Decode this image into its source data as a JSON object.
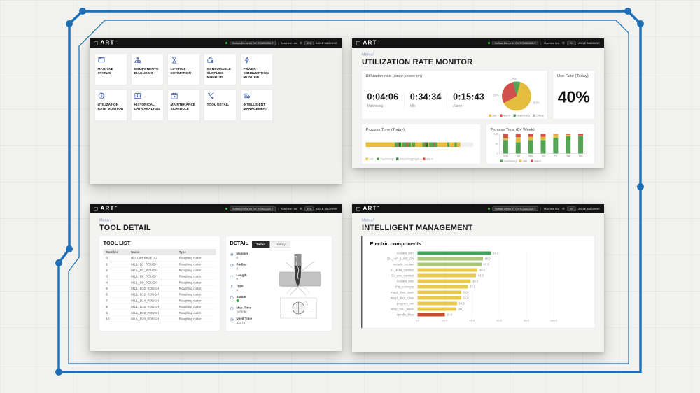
{
  "canvas": {
    "background": "#f1f1ef",
    "frame_color": "#1d6fb8"
  },
  "appbar": {
    "brand": "ART",
    "tm": "™",
    "status_color": "#3ec146",
    "machine_name": "Buffalo Demo #1 GX ROM50350-T",
    "separator": "|",
    "machine_list_label": "Machine List",
    "gear_icon": "⚙",
    "lang_label": "EN",
    "machine_type_label": "AXILE MACHINE"
  },
  "menu": {
    "tiles": [
      {
        "label": "MACHINE STATUS",
        "icon": "machine-status-icon"
      },
      {
        "label": "COMPONENTS DIAGNOSIS",
        "icon": "components-diagnosis-icon"
      },
      {
        "label": "LIFETIME ESTIMATION",
        "icon": "lifetime-estimation-icon"
      },
      {
        "label": "CONSUMABLE SUPPLIES MONITOR",
        "icon": "consumable-supplies-icon"
      },
      {
        "label": "POWER CONSUMPTION MONITOR",
        "icon": "power-consumption-icon"
      },
      {
        "label": "UTILIZATION RATE MONITOR",
        "icon": "utilization-rate-icon"
      },
      {
        "label": "HISTORICAL DATA ANALYSIS",
        "icon": "historical-data-icon"
      },
      {
        "label": "MAINTENANCE SCHEDULE",
        "icon": "maintenance-schedule-icon"
      },
      {
        "label": "TOOL DETAIL",
        "icon": "tool-detail-icon"
      },
      {
        "label": "INTELLIGENT MANAGEMENT",
        "icon": "intelligent-management-icon"
      }
    ]
  },
  "utilization": {
    "breadcrumb": "Menu /",
    "title": "UTILIZATION RATE MONITOR",
    "rate_card_title": "Utilization rate (since power on)",
    "stats": [
      {
        "value": "0:04:06",
        "label": "Machining"
      },
      {
        "value": "0:34:34",
        "label": "Idle"
      },
      {
        "value": "0:15:43",
        "label": "Alarm"
      }
    ],
    "use_rate_title": "Use Rate (Today)",
    "use_rate_value": "40%",
    "today_title": "Process Time (Today)",
    "week_title": "Process Time (By Week)"
  },
  "tool": {
    "breadcrumb": "Menu /",
    "title": "TOOL DETAIL",
    "list_title": "TOOL LIST",
    "table": {
      "headers": [
        "Number",
        "Name",
        "Type"
      ],
      "rows": [
        [
          "0",
          "NULLWERKZEUG",
          "Roughing cutter"
        ],
        [
          "1",
          "MILL_D2_ROUGH",
          "Roughing cutter"
        ],
        [
          "2",
          "MILL_D4_ROUGH",
          "Roughing cutter"
        ],
        [
          "3",
          "MILL_D6_ROUGH",
          "Roughing cutter"
        ],
        [
          "4",
          "MILL_D8_ROUGH",
          "Roughing cutter"
        ],
        [
          "5",
          "MILL_D10_ROUGH",
          "Roughing cutter"
        ],
        [
          "6",
          "MILL_D12_ROUGH",
          "Roughing cutter"
        ],
        [
          "7",
          "MILL_D14_ROUGH",
          "Roughing cutter"
        ],
        [
          "8",
          "MILL_D16_ROUGH",
          "Roughing cutter"
        ],
        [
          "9",
          "MILL_D18_ROUGH",
          "Roughing cutter"
        ],
        [
          "10",
          "MILL_D20_ROUGH",
          "Roughing cutter"
        ]
      ]
    },
    "detail_title": "DETAIL",
    "tabs": [
      {
        "label": "Detail",
        "active": true
      },
      {
        "label": "History",
        "active": false
      }
    ],
    "fields": [
      {
        "icon": "number-icon",
        "label": "Number",
        "value": "0"
      },
      {
        "icon": "radius-icon",
        "label": "Radius",
        "value": "0"
      },
      {
        "icon": "length-icon",
        "label": "Length",
        "value": "0"
      },
      {
        "icon": "type-icon",
        "label": "Type",
        "value": "9"
      },
      {
        "icon": "status-icon",
        "label": "Status",
        "value": "",
        "status_color": "#2fae43"
      },
      {
        "icon": "max-time-icon",
        "label": "Max. Time",
        "value": "2400 hr"
      },
      {
        "icon": "used-time-icon",
        "label": "Used Time",
        "value": "333 hr"
      }
    ]
  },
  "intelligent": {
    "breadcrumb": "Menu /",
    "title": "INTELLIGENT MANAGEMENT",
    "chart_title": "Electric components"
  },
  "chart_data": [
    {
      "id": "utilization_pie",
      "type": "pie",
      "title": "Utilization rate (since power on)",
      "slices": [
        {
          "label": "machining",
          "value": 8,
          "pct_label": "8%",
          "color": "#55a455"
        },
        {
          "label": "idle",
          "value": 63,
          "pct_label": "63%",
          "color": "#e4bc3e"
        },
        {
          "label": "alarm",
          "value": 29,
          "pct_label": "29%",
          "color": "#d1504b"
        }
      ],
      "legend": [
        {
          "label": "idle",
          "color": "#e4bc3e"
        },
        {
          "label": "alarm",
          "color": "#d1504b"
        },
        {
          "label": "machining",
          "color": "#55a455"
        },
        {
          "label": "offline",
          "color": "#b9b9b9"
        }
      ],
      "legend_position": "bottom-right"
    },
    {
      "id": "process_today",
      "type": "timeline-strip",
      "title": "Process Time (Today)",
      "colors": {
        "idle": "#e4bc3e",
        "machining": "#55a455",
        "machining_high": "#1f7a33",
        "alarm": "#d1504b",
        "empty": "#efefef"
      },
      "segments": [
        [
          "idle",
          27
        ],
        [
          "machining",
          3
        ],
        [
          "alarm",
          1
        ],
        [
          "machining_high",
          2
        ],
        [
          "idle",
          1
        ],
        [
          "machining",
          4
        ],
        [
          "alarm",
          1
        ],
        [
          "machining",
          3
        ],
        [
          "idle",
          1
        ],
        [
          "machining",
          3
        ],
        [
          "idle",
          7
        ],
        [
          "machining",
          2
        ],
        [
          "alarm",
          1
        ],
        [
          "machining_high",
          2
        ],
        [
          "idle",
          1
        ],
        [
          "machining",
          4
        ],
        [
          "alarm",
          1
        ],
        [
          "machining",
          3
        ],
        [
          "idle",
          9
        ],
        [
          "machining",
          2
        ],
        [
          "idle",
          5
        ],
        [
          "machining",
          2
        ],
        [
          "idle",
          3
        ],
        [
          "empty",
          12
        ]
      ],
      "legend": [
        {
          "label": "idle",
          "color": "#e4bc3e"
        },
        {
          "label": "machining",
          "color": "#55a455"
        },
        {
          "label": "machining(high)",
          "color": "#1f7a33"
        },
        {
          "label": "alarm",
          "color": "#d1504b"
        }
      ]
    },
    {
      "id": "process_week",
      "type": "bar",
      "stacked": true,
      "title": "Process Time (By Week)",
      "categories": [
        "Mon",
        "Tue",
        "Wed",
        "Thu",
        "Fri",
        "Sat",
        "Sun"
      ],
      "series": [
        {
          "name": "machining",
          "color": "#55a455",
          "values": [
            68,
            57,
            68,
            68,
            80,
            88,
            90
          ]
        },
        {
          "name": "idle",
          "color": "#e4bc3e",
          "values": [
            12,
            26,
            17,
            17,
            17,
            8,
            2
          ]
        },
        {
          "name": "alarm",
          "color": "#d1504b",
          "values": [
            20,
            17,
            15,
            15,
            3,
            4,
            8
          ]
        }
      ],
      "ylim": [
        0,
        100
      ],
      "yticks": [
        "0",
        "50",
        "100"
      ],
      "legend": [
        {
          "label": "machining",
          "color": "#55a455"
        },
        {
          "label": "idle",
          "color": "#e4bc3e"
        },
        {
          "label": "alarm",
          "color": "#d1504b"
        }
      ]
    },
    {
      "id": "electric_components",
      "type": "bar",
      "orientation": "horizontal",
      "title": "Electric components",
      "xlim": [
        0,
        110
      ],
      "xticks": [
        "0.0",
        "20.0",
        "40.0",
        "60.0",
        "80.0",
        "100.0"
      ],
      "xtick_values": [
        0,
        20,
        40,
        60,
        80,
        100
      ],
      "bars": [
        {
          "label": "coolant_M07",
          "value": 54,
          "value_label": "54.0",
          "color": "#46a15c"
        },
        {
          "label": "OIL_AIR_LUBE_ON",
          "value": 48,
          "value_label": "48.0",
          "color": "#abc878"
        },
        {
          "label": "recycle_coolant",
          "value": 47,
          "value_label": "47.0",
          "color": "#abc878"
        },
        {
          "label": "S1_delta_connect",
          "value": 44,
          "value_label": "44.0",
          "color": "#e7c94f"
        },
        {
          "label": "S1_wye_connect",
          "value": 43,
          "value_label": "43.0",
          "color": "#e7c94f"
        },
        {
          "label": "coolant_M08",
          "value": 39,
          "value_label": "39.0",
          "color": "#e7c94f"
        },
        {
          "label": "chip_conveyor",
          "value": 37,
          "value_label": "37.0",
          "color": "#e7c94f"
        },
        {
          "label": "mag1_door_open",
          "value": 32,
          "value_label": "32.0",
          "color": "#e7c94f"
        },
        {
          "label": "mag1_door_close",
          "value": 32,
          "value_label": "32.0",
          "color": "#e7c94f"
        },
        {
          "label": "program_run",
          "value": 29,
          "value_label": "29.0",
          "color": "#e7c94f"
        },
        {
          "label": "lamp_TNC_alarm",
          "value": 28,
          "value_label": "28.0",
          "color": "#e7c94f"
        },
        {
          "label": "spindle_blow",
          "value": 20,
          "value_label": "20.0",
          "color": "#c94b2d"
        }
      ]
    }
  ]
}
